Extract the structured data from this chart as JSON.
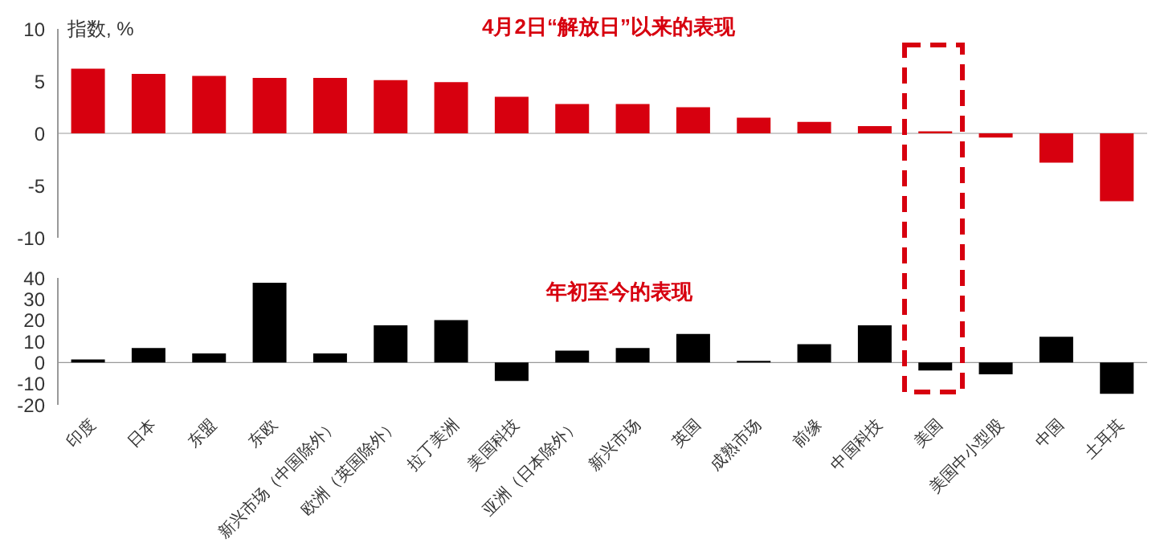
{
  "chart_data": [
    {
      "type": "bar",
      "title": "4月2日“解放日”以来的表现",
      "ylabel": "指数, %",
      "categories": [
        null,
        null,
        null,
        null,
        null,
        null,
        null,
        null,
        null,
        null,
        null,
        null,
        null,
        null,
        null,
        null,
        null,
        null
      ],
      "series": [
        {
          "color": "#d7000f",
          "values": [
            6.2,
            5.7,
            5.5,
            5.3,
            5.3,
            5.1,
            4.9,
            3.5,
            2.8,
            2.8,
            2.5,
            1.5,
            1.1,
            0.7,
            0.2,
            -0.4,
            -2.8,
            -6.5
          ]
        }
      ],
      "ylim": [
        -10,
        10
      ],
      "yticks": [
        -10,
        -5,
        0,
        5,
        10
      ],
      "tick_labels": "y",
      "ref_lines": [
        {
          "axis": "y",
          "value": 0
        }
      ]
    },
    {
      "type": "bar",
      "title": "年初至今的表现",
      "categories": [
        "印度",
        "日本",
        "东盟",
        "东欧",
        "新兴市场（中国除外）",
        "欧洲（英国除外）",
        "拉丁美洲",
        "美国科技",
        "亚洲（日本除外）",
        "新兴市场",
        "英国",
        "成熟市场",
        "前缘",
        "中国科技",
        "美国",
        "美国中小型股",
        "中国",
        "土耳其"
      ],
      "series": [
        {
          "color": "#000000",
          "values": [
            1.5,
            6.9,
            4.3,
            37.7,
            4.3,
            17.6,
            20.1,
            -8.7,
            5.6,
            6.9,
            13.5,
            0.8,
            8.7,
            17.6,
            -3.8,
            -5.6,
            12.2,
            -14.8
          ]
        }
      ],
      "ylim": [
        -20,
        40
      ],
      "yticks": [
        -20,
        -10,
        0,
        10,
        20,
        30,
        40
      ],
      "ref_lines": [
        {
          "axis": "y",
          "value": 0
        }
      ]
    }
  ]
}
